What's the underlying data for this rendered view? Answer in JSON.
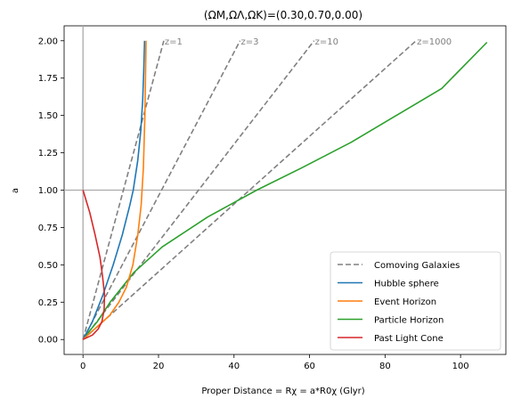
{
  "chart_data": {
    "type": "line",
    "title": "(ΩM,ΩΛ,ΩK)=(0.30,0.70,0.00)",
    "xlabel": "Proper Distance = Rχ = a*R0χ    (Glyr)",
    "ylabel": "a",
    "xlim": [
      -5,
      112
    ],
    "ylim": [
      -0.1,
      2.1
    ],
    "xticks": [
      0,
      20,
      40,
      60,
      80,
      100
    ],
    "yticks": [
      0.0,
      0.25,
      0.5,
      0.75,
      1.0,
      1.25,
      1.5,
      1.75,
      2.0
    ],
    "ytick_labels": [
      "0.00",
      "0.25",
      "0.50",
      "0.75",
      "1.00",
      "1.25",
      "1.50",
      "1.75",
      "2.00"
    ],
    "reference_lines": {
      "x": 0,
      "y": 1.0,
      "color": "#aaaaaa"
    },
    "legend_position": "lower right",
    "comoving_galaxies": [
      {
        "label": "z=1",
        "slope_per_a": 10.7
      },
      {
        "label": "z=3",
        "slope_per_a": 20.8
      },
      {
        "label": "z=10",
        "slope_per_a": 30.6
      },
      {
        "label": "z=1000",
        "slope_per_a": 44.1
      }
    ],
    "series": [
      {
        "name": "Comoving Galaxies",
        "color": "#808080",
        "dashed": true
      },
      {
        "name": "Hubble sphere",
        "color": "#1f77b4",
        "points": [
          [
            0,
            0
          ],
          [
            2.5,
            0.12
          ],
          [
            5.3,
            0.3
          ],
          [
            8.0,
            0.5
          ],
          [
            10.4,
            0.7
          ],
          [
            12.4,
            0.9
          ],
          [
            13.3,
            1.0
          ],
          [
            14.5,
            1.2
          ],
          [
            15.3,
            1.4
          ],
          [
            15.8,
            1.6
          ],
          [
            16.1,
            1.8
          ],
          [
            16.3,
            2.0
          ]
        ]
      },
      {
        "name": "Event Horizon",
        "color": "#ff7f0e",
        "points": [
          [
            0,
            0
          ],
          [
            3.5,
            0.08
          ],
          [
            7.0,
            0.16
          ],
          [
            9.5,
            0.25
          ],
          [
            11.5,
            0.35
          ],
          [
            13.2,
            0.5
          ],
          [
            14.5,
            0.7
          ],
          [
            15.4,
            0.9
          ],
          [
            16.0,
            1.15
          ],
          [
            16.4,
            1.5
          ],
          [
            16.7,
            2.0
          ]
        ]
      },
      {
        "name": "Particle Horizon",
        "color": "#2ca02c",
        "points": [
          [
            0,
            0
          ],
          [
            1.5,
            0.05
          ],
          [
            3.8,
            0.12
          ],
          [
            7.2,
            0.25
          ],
          [
            13.5,
            0.45
          ],
          [
            21.0,
            0.62
          ],
          [
            33.0,
            0.82
          ],
          [
            46.0,
            1.0
          ],
          [
            58.0,
            1.15
          ],
          [
            71.0,
            1.32
          ],
          [
            83.0,
            1.5
          ],
          [
            95.0,
            1.68
          ],
          [
            107.0,
            1.99
          ]
        ]
      },
      {
        "name": "Past Light Cone",
        "color": "#d62728",
        "points": [
          [
            0,
            1.0
          ],
          [
            1.8,
            0.85
          ],
          [
            3.2,
            0.7
          ],
          [
            4.5,
            0.55
          ],
          [
            5.2,
            0.42
          ],
          [
            5.7,
            0.3
          ],
          [
            5.6,
            0.2
          ],
          [
            5.0,
            0.12
          ],
          [
            4.0,
            0.07
          ],
          [
            2.5,
            0.03
          ],
          [
            0,
            0
          ]
        ]
      }
    ]
  }
}
